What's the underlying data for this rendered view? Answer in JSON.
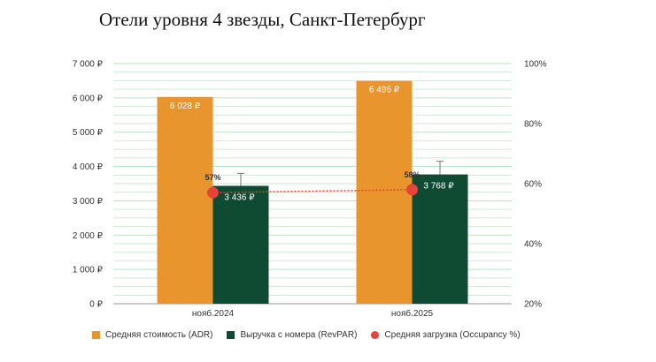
{
  "chart_data": {
    "type": "bar",
    "title": "Отели уровня 4 звезды, Санкт-Петербург",
    "categories": [
      "нояб.2024",
      "нояб.2025"
    ],
    "series": [
      {
        "name": "Средняя стоимость (ADR)",
        "kind": "bar",
        "axis": "left",
        "color": "#E8952E",
        "values": [
          6028,
          6496
        ],
        "labels": [
          "6 028 ₽",
          "6 496 ₽"
        ]
      },
      {
        "name": "Выручка с номера (RevPAR)",
        "kind": "bar",
        "axis": "left",
        "color": "#0F4A33",
        "values": [
          3436,
          3768
        ],
        "labels": [
          "3 436 ₽",
          "3 768 ₽"
        ],
        "error_upper": [
          3800,
          4150
        ]
      },
      {
        "name": "Средняя загрузка (Occupancy %)",
        "kind": "point",
        "axis": "right",
        "color": "#E8423A",
        "values": [
          57,
          58
        ],
        "labels": [
          "57%",
          "58%"
        ]
      }
    ],
    "y_left": {
      "ylim": [
        0,
        7000
      ],
      "ticks": [
        0,
        1000,
        2000,
        3000,
        4000,
        5000,
        6000,
        7000
      ],
      "tick_labels": [
        "0 ₽",
        "1 000 ₽",
        "2 000 ₽",
        "3 000 ₽",
        "4 000 ₽",
        "5 000 ₽",
        "6 000 ₽",
        "7 000 ₽"
      ]
    },
    "y_right": {
      "ylim": [
        20,
        100
      ],
      "ticks": [
        20,
        40,
        60,
        80,
        100
      ],
      "tick_labels": [
        "20%",
        "40%",
        "60%",
        "80%",
        "100%"
      ]
    },
    "grid": true,
    "grid_color": "#B9E3C4",
    "legend_position": "bottom"
  }
}
